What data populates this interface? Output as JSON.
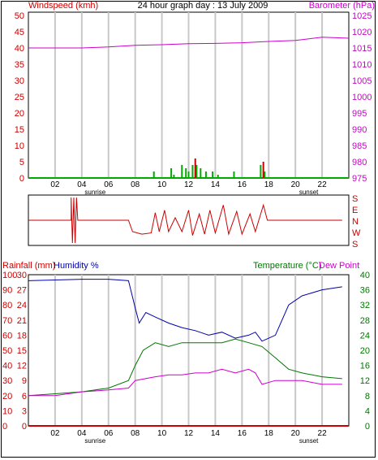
{
  "header": {
    "left_title": "Windspeed (kmh)",
    "center_title": "24 hour graph day : 13 July 2009",
    "right_title": "Barometer (hPa)"
  },
  "lower_header": {
    "left_titles": [
      "Rainfall (mm)",
      "Humidity %"
    ],
    "right_titles": [
      "Temperature (°C)",
      "Dew Point"
    ]
  },
  "colors": {
    "barometer": "#cc00cc",
    "wind_speed": "#00aa00",
    "wind_gust": "#cc0000",
    "wind_dir": "#cc0000",
    "humidity": "#0000aa",
    "temperature": "#007700",
    "dewpoint": "#cc00cc",
    "rainfall": "#cc0000",
    "grid": "#c8c8c8",
    "left_axis_text": "#cc0000",
    "barometer_axis_text": "#cc00cc",
    "temp_axis_text": "#007700"
  },
  "x_axis": {
    "tick_labels": [
      "02",
      "04",
      "06",
      "08",
      "10",
      "12",
      "14",
      "16",
      "18",
      "20",
      "22"
    ],
    "sunrise_label": "sunrise",
    "sunset_label": "sunset",
    "sunrise_hour": 5,
    "sunset_hour": 21
  },
  "chart_data": [
    {
      "type": "line",
      "id": "wind_barometer",
      "title": "24 hour graph day : 13 July 2009",
      "x_unit": "hour of day",
      "left_axis": {
        "label": "Windspeed (kmh)",
        "ticks": [
          0,
          5,
          10,
          15,
          20,
          25,
          30,
          35,
          40,
          45,
          50
        ],
        "range": [
          0,
          50
        ]
      },
      "right_axis": {
        "label": "Barometer (hPa)",
        "ticks": [
          975,
          980,
          985,
          990,
          995,
          1000,
          1005,
          1010,
          1015,
          1020,
          1025
        ],
        "range": [
          975,
          1025
        ]
      },
      "series": [
        {
          "name": "Barometer (hPa)",
          "axis": "right",
          "points": [
            [
              0,
              1015
            ],
            [
              4,
              1015
            ],
            [
              6,
              1015.3
            ],
            [
              8,
              1015.8
            ],
            [
              10,
              1016
            ],
            [
              12,
              1016.3
            ],
            [
              14,
              1016.4
            ],
            [
              16,
              1016.6
            ],
            [
              18,
              1017
            ],
            [
              20,
              1017.3
            ],
            [
              22,
              1018.3
            ],
            [
              24,
              1018
            ]
          ]
        },
        {
          "name": "Windspeed (kmh)",
          "axis": "left",
          "bars": [
            [
              9.4,
              2
            ],
            [
              10.7,
              3
            ],
            [
              10.9,
              1
            ],
            [
              11.5,
              4
            ],
            [
              11.8,
              3
            ],
            [
              12.0,
              2
            ],
            [
              12.3,
              4
            ],
            [
              12.6,
              4
            ],
            [
              12.9,
              3
            ],
            [
              13.3,
              2
            ],
            [
              13.8,
              2
            ],
            [
              14.2,
              1
            ],
            [
              15.4,
              2
            ],
            [
              17.4,
              4
            ],
            [
              17.7,
              2
            ]
          ]
        },
        {
          "name": "Wind gust (kmh)",
          "axis": "left",
          "bars": [
            [
              12.5,
              6
            ],
            [
              17.6,
              5
            ]
          ]
        }
      ]
    },
    {
      "type": "line",
      "id": "wind_direction",
      "y_labels": [
        "S",
        "E",
        "N",
        "W",
        "S"
      ],
      "range": [
        0,
        360
      ],
      "series": [
        {
          "name": "Wind direction",
          "points": [
            [
              0,
              180
            ],
            [
              3.2,
              180
            ],
            [
              3.2,
              360
            ],
            [
              3.3,
              0
            ],
            [
              3.4,
              360
            ],
            [
              3.5,
              0
            ],
            [
              3.6,
              360
            ],
            [
              3.7,
              180
            ],
            [
              7.5,
              180
            ],
            [
              7.8,
              90
            ],
            [
              8.5,
              70
            ],
            [
              9.2,
              80
            ],
            [
              9.5,
              240
            ],
            [
              9.8,
              90
            ],
            [
              10.2,
              260
            ],
            [
              10.5,
              90
            ],
            [
              11.0,
              200
            ],
            [
              11.5,
              90
            ],
            [
              12.0,
              260
            ],
            [
              12.3,
              60
            ],
            [
              12.8,
              230
            ],
            [
              13.2,
              70
            ],
            [
              13.6,
              260
            ],
            [
              14.0,
              80
            ],
            [
              14.6,
              300
            ],
            [
              15.0,
              70
            ],
            [
              15.6,
              250
            ],
            [
              16.0,
              70
            ],
            [
              16.6,
              230
            ],
            [
              17.0,
              90
            ],
            [
              17.6,
              300
            ],
            [
              17.9,
              180
            ],
            [
              23.5,
              180
            ]
          ]
        }
      ]
    },
    {
      "type": "line",
      "id": "temp_humidity",
      "left_axes": [
        {
          "label": "Rainfall (mm)",
          "ticks": [
            0,
            3,
            6,
            9,
            12,
            15,
            18,
            21,
            24,
            27,
            30
          ],
          "range": [
            0,
            30
          ]
        },
        {
          "label": "Humidity %",
          "ticks": [
            0,
            10,
            20,
            30,
            40,
            50,
            60,
            70,
            80,
            90,
            100
          ],
          "range": [
            0,
            100
          ]
        }
      ],
      "right_axis": {
        "label": "Temperature (°C)",
        "ticks": [
          0,
          4,
          8,
          12,
          16,
          20,
          24,
          28,
          32,
          36,
          40
        ],
        "range": [
          0,
          40
        ]
      },
      "series": [
        {
          "name": "Humidity %",
          "axis": "humidity",
          "points": [
            [
              0,
              96
            ],
            [
              4,
              97
            ],
            [
              6,
              97
            ],
            [
              7.5,
              96
            ],
            [
              8.0,
              78
            ],
            [
              8.3,
              68
            ],
            [
              8.8,
              75
            ],
            [
              9.5,
              72
            ],
            [
              10.5,
              68
            ],
            [
              11.5,
              65
            ],
            [
              12.5,
              63
            ],
            [
              13.5,
              60
            ],
            [
              14.5,
              62
            ],
            [
              15.5,
              58
            ],
            [
              16.5,
              60
            ],
            [
              17.0,
              62
            ],
            [
              17.5,
              56
            ],
            [
              18.5,
              60
            ],
            [
              19.5,
              80
            ],
            [
              20.5,
              86
            ],
            [
              22,
              90
            ],
            [
              23.5,
              92
            ]
          ]
        },
        {
          "name": "Temperature (°C)",
          "axis": "right",
          "points": [
            [
              0,
              8
            ],
            [
              2,
              8.5
            ],
            [
              4,
              9
            ],
            [
              6,
              10
            ],
            [
              7.5,
              12
            ],
            [
              8.0,
              16
            ],
            [
              8.6,
              20
            ],
            [
              9.5,
              22
            ],
            [
              10.5,
              21
            ],
            [
              11.5,
              22
            ],
            [
              12.5,
              22
            ],
            [
              13.5,
              22
            ],
            [
              14.5,
              22
            ],
            [
              15.5,
              23
            ],
            [
              16.5,
              22
            ],
            [
              17.5,
              21
            ],
            [
              18.5,
              18
            ],
            [
              19.5,
              15
            ],
            [
              20.5,
              14
            ],
            [
              22,
              13
            ],
            [
              23.5,
              12.5
            ]
          ]
        },
        {
          "name": "Dew Point",
          "axis": "right",
          "points": [
            [
              0,
              8
            ],
            [
              2,
              8
            ],
            [
              4,
              9
            ],
            [
              6,
              9.5
            ],
            [
              7.5,
              10
            ],
            [
              8.0,
              12
            ],
            [
              9.5,
              13
            ],
            [
              10.5,
              13.5
            ],
            [
              11.5,
              13.5
            ],
            [
              12.5,
              14
            ],
            [
              13.5,
              14
            ],
            [
              14.5,
              15
            ],
            [
              15.5,
              14
            ],
            [
              16.5,
              15
            ],
            [
              17.0,
              14
            ],
            [
              17.5,
              11
            ],
            [
              18.5,
              12
            ],
            [
              19.5,
              12
            ],
            [
              20.5,
              12
            ],
            [
              22,
              11
            ],
            [
              23.5,
              11
            ]
          ]
        },
        {
          "name": "Rainfall (mm)",
          "axis": "rain",
          "points": [
            [
              0,
              0
            ],
            [
              24,
              0
            ]
          ]
        }
      ]
    }
  ]
}
